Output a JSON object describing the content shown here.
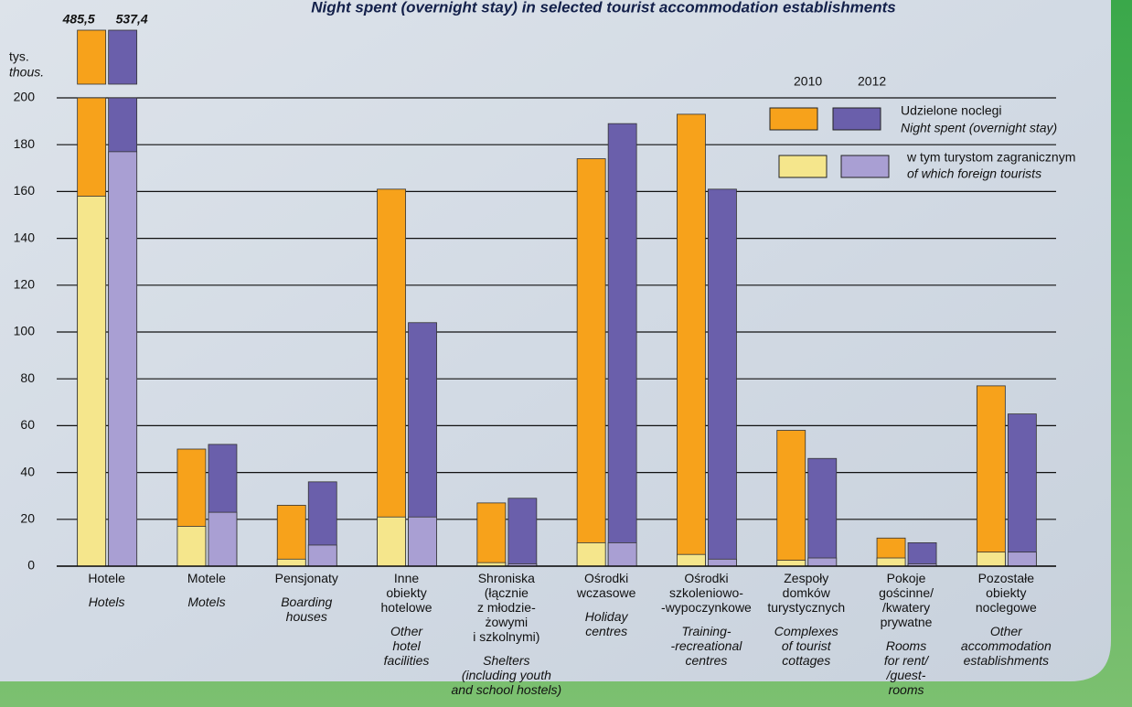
{
  "chart_data": {
    "type": "bar",
    "title": "Night spent (overnight stay) in selected tourist accommodation establishments",
    "y_label": [
      "tys.",
      "thous."
    ],
    "categories": [
      "Hotele",
      "Motele",
      "Pensjonaty",
      "Inne\nobiekty\nhotelowe",
      "Shroniska\n(łącznie\nz młodzie-\nżowymi\ni szkolnymi)",
      "Ośrodki\nwczasowe",
      "Ośrodki\nszkoleniowo-\n-wypoczynkowe",
      "Zespoły\ndomków\nturystycznych",
      "Pokoje\ngościnne/\n/kwatery\nprywatne",
      "Pozostałe\nobiekty\nnoclegowe"
    ],
    "categories_en": [
      "Hotels",
      "Motels",
      "Boarding\nhouses",
      "Other\nhotel\nfacilities",
      "Shelters\n(including youth\nand school hostels)",
      "Holiday\ncentres",
      "Training-\n-recreational\ncentres",
      "Complexes\nof tourist\ncottages",
      "Rooms\nfor rent/\n/guest-\nrooms",
      "Other\naccommodation\nestablishments"
    ],
    "series": [
      {
        "color": "#f7a21b",
        "values": [
          485.5,
          50,
          26,
          161,
          27,
          174,
          193,
          58,
          12,
          77
        ],
        "value_labels": [
          "485,5",
          null,
          null,
          null,
          null,
          null,
          null,
          null,
          null,
          null
        ]
      },
      {
        "color": "#6a5fab",
        "values": [
          537.4,
          52,
          36,
          104,
          29,
          189,
          161,
          46,
          10,
          65
        ],
        "value_labels": [
          "537,4",
          null,
          null,
          null,
          null,
          null,
          null,
          null,
          null,
          null
        ]
      },
      {
        "color": "#f5e68c",
        "values": [
          158,
          17,
          3,
          21,
          1.5,
          10,
          5,
          2.5,
          3.5,
          6
        ]
      },
      {
        "color": "#a99fd3",
        "values": [
          177,
          23,
          9,
          21,
          1,
          10,
          3,
          3.5,
          1,
          6
        ]
      }
    ],
    "legend": {
      "years": [
        "2010",
        "2012"
      ],
      "rows": [
        [
          "Udzielone noclegi",
          "Night spent (overnight stay)"
        ],
        [
          "w tym turystom zagranicznym",
          "of which foreign tourists"
        ]
      ]
    },
    "ylim": [
      0,
      200
    ],
    "yticks": [
      0,
      20,
      40,
      60,
      80,
      100,
      120,
      140,
      160,
      180,
      200
    ],
    "grid": true
  }
}
